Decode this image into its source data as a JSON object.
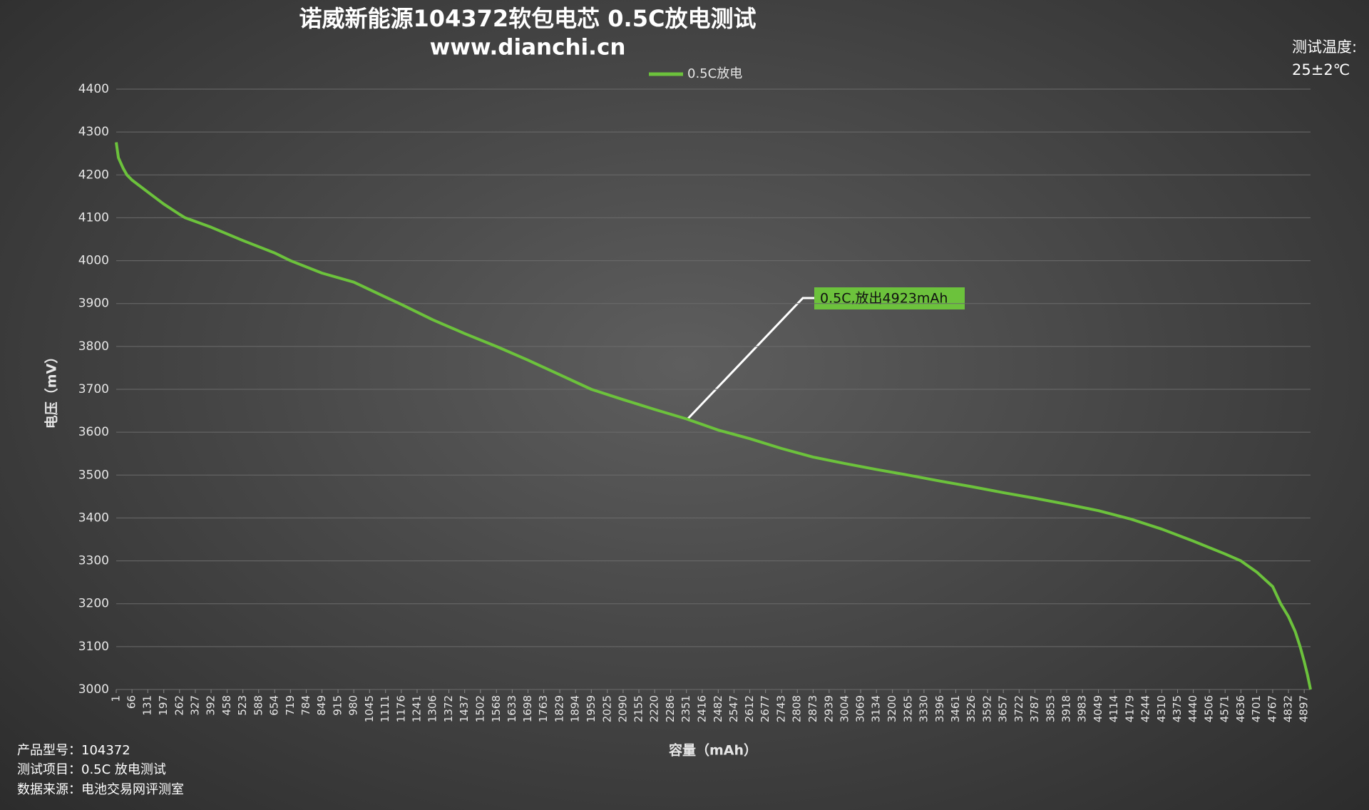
{
  "chart_data": {
    "type": "line",
    "title": "诺威新能源104372软包电芯 0.5C放电测试",
    "subtitle": "www.dianchi.cn",
    "x_label": "容量（mAh）",
    "y_label": "电压（mV）",
    "annotation": "0.5C,放出4923mAh",
    "side_note": [
      "测试温度:",
      "25±2℃"
    ],
    "footer": [
      "产品型号：104372",
      "测试项目：0.5C 放电测试",
      "数据来源：电池交易网评测室"
    ],
    "legend": "top",
    "grid": true,
    "x": [
      1,
      10,
      30,
      45,
      66,
      131,
      197,
      262,
      285,
      392,
      523,
      654,
      719,
      849,
      980,
      1111,
      1176,
      1306,
      1437,
      1568,
      1698,
      1829,
      1959,
      2090,
      2220,
      2351,
      2482,
      2612,
      2743,
      2873,
      3004,
      3134,
      3265,
      3396,
      3526,
      3657,
      3787,
      3918,
      4049,
      4179,
      4310,
      4440,
      4571,
      4636,
      4701,
      4767,
      4800,
      4832,
      4860,
      4880,
      4897,
      4910,
      4923
    ],
    "series": [
      {
        "name": "0.5C放电",
        "color": "#6cc23c",
        "values": [
          4276,
          4240,
          4215,
          4200,
          4188,
          4160,
          4132,
          4108,
          4100,
          4078,
          4047,
          4018,
          4000,
          3971,
          3950,
          3915,
          3898,
          3862,
          3830,
          3800,
          3768,
          3734,
          3700,
          3676,
          3653,
          3631,
          3605,
          3585,
          3562,
          3542,
          3527,
          3513,
          3500,
          3486,
          3473,
          3459,
          3446,
          3432,
          3417,
          3398,
          3374,
          3346,
          3316,
          3300,
          3274,
          3240,
          3200,
          3170,
          3135,
          3100,
          3065,
          3035,
          3000
        ]
      }
    ],
    "xlim": [
      1,
      4923
    ],
    "xticks": [
      1,
      66,
      131,
      197,
      262,
      327,
      392,
      458,
      523,
      588,
      654,
      719,
      784,
      849,
      915,
      980,
      1045,
      1111,
      1176,
      1241,
      1306,
      1372,
      1437,
      1502,
      1568,
      1633,
      1698,
      1763,
      1829,
      1894,
      1959,
      2025,
      2090,
      2155,
      2220,
      2286,
      2351,
      2416,
      2482,
      2547,
      2612,
      2677,
      2743,
      2808,
      2873,
      2939,
      3004,
      3069,
      3134,
      3200,
      3265,
      3330,
      3396,
      3461,
      3526,
      3592,
      3657,
      3722,
      3787,
      3853,
      3918,
      3983,
      4049,
      4114,
      4179,
      4244,
      4310,
      4375,
      4440,
      4506,
      4571,
      4636,
      4701,
      4767,
      4832,
      4897
    ],
    "ylim": [
      3000,
      4400
    ],
    "yticks": [
      3000,
      3100,
      3200,
      3300,
      3400,
      3500,
      3600,
      3700,
      3800,
      3900,
      4000,
      4100,
      4200,
      4300,
      4400
    ]
  }
}
